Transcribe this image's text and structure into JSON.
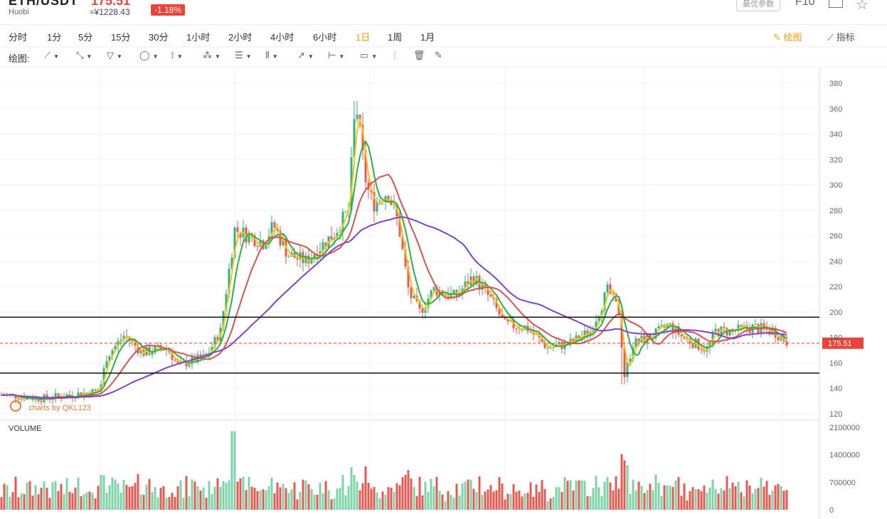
{
  "header": {
    "pair": "ETH/USDT",
    "exchange": "Huobi",
    "price": "175.51",
    "cny": "≈¥1228.43",
    "change": "-1.18%",
    "param_label": "最优参数",
    "f10": "F10",
    "fullscreen_icon": "fullscreen-icon",
    "favorite_icon": "star-icon"
  },
  "periods": [
    "分时",
    "1分",
    "5分",
    "15分",
    "30分",
    "1小时",
    "2小时",
    "4小时",
    "6小时",
    "1日",
    "1周",
    "1月"
  ],
  "active_period": "1日",
  "draw_button": "绘图",
  "indicator_button": "指标",
  "draw_toolbar": {
    "label": "绘图:",
    "tools": [
      "trend-line-icon",
      "ray-icon",
      "channel-icon",
      "shape-icon",
      "wave-icon",
      "pattern-icon",
      "fib-icon",
      "gann-icon",
      "arrow-icon",
      "measure-icon",
      "text-icon",
      "indicator-icon",
      "delete-icon",
      "brush-icon"
    ]
  },
  "watermark": "charts by QKL123",
  "colors": {
    "up": "#2fb57c",
    "down": "#e55b53",
    "ma5": "#f5c518",
    "ma10": "#2ab04a",
    "ma30": "#d9534f",
    "ma60": "#7e44c7",
    "last_price_bg": "#e8443a"
  },
  "chart_data": [
    {
      "type": "candlestick",
      "title": "",
      "price_axis": {
        "ticks": [
          120,
          140,
          160,
          180,
          200,
          220,
          240,
          260,
          280,
          300,
          320,
          340,
          360,
          380
        ],
        "ylim": [
          112,
          385
        ]
      },
      "last_price": "175.51",
      "horizontal_lines": [
        196,
        152
      ],
      "candles_approx": [
        {
          "phase": "start",
          "close": 135
        },
        {
          "phase": "rise1",
          "close": 182
        },
        {
          "phase": "pullback",
          "close": 160
        },
        {
          "phase": "rise2",
          "close": 265
        },
        {
          "phase": "peak",
          "close": 366
        },
        {
          "phase": "drop",
          "close": 200
        },
        {
          "phase": "bounce",
          "close": 230
        },
        {
          "phase": "range",
          "close": 185
        },
        {
          "phase": "spike",
          "close": 220
        },
        {
          "phase": "wick-low",
          "close": 143
        },
        {
          "phase": "end",
          "close": 175.51
        }
      ],
      "series_moving_averages": [
        {
          "name": "",
          "color": "#f5c518"
        },
        {
          "name": "",
          "color": "#2ab04a"
        },
        {
          "name": "",
          "color": "#d9534f"
        },
        {
          "name": "",
          "color": "#7e44c7"
        }
      ]
    },
    {
      "type": "bar",
      "title": "VOLUME",
      "volume_axis": {
        "ticks": [
          "2100000",
          "1400000",
          "700000",
          "0"
        ],
        "ylim": [
          0,
          2100000
        ]
      }
    }
  ]
}
